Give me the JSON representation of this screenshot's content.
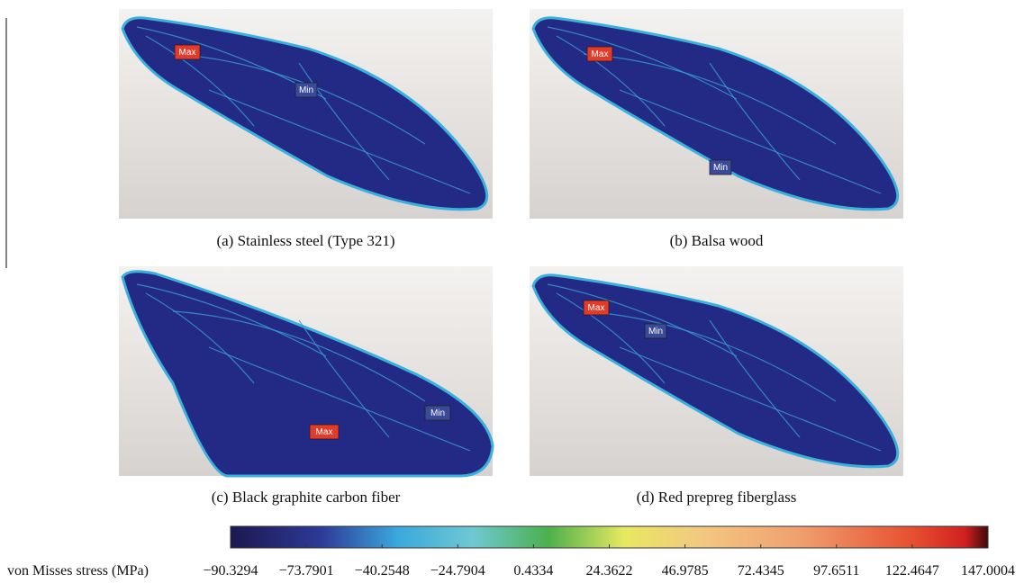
{
  "panels": [
    {
      "caption": "(a) Stainless steel (Type 321)",
      "max": "Max",
      "min": "Min"
    },
    {
      "caption": "(b) Balsa wood",
      "max": "Max",
      "min": "Min"
    },
    {
      "caption": "(c) Black graphite carbon fiber",
      "max": "Max",
      "min": "Min"
    },
    {
      "caption": "(d) Red prepreg fiberglass",
      "max": "Max",
      "min": "Min"
    }
  ],
  "colorbar": {
    "label": "von Misses stress (MPa)",
    "ticks": [
      "−90.3294",
      "−73.7901",
      "−40.2548",
      "−24.7904",
      "0.4334",
      "24.3622",
      "46.9785",
      "72.4345",
      "97.6511",
      "122.4647",
      "147.0004"
    ]
  }
}
